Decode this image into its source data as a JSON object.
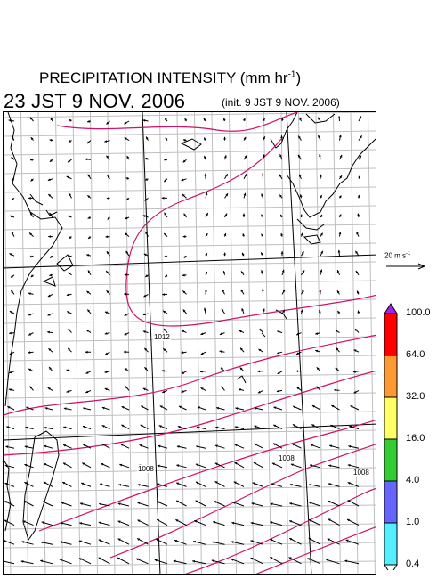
{
  "title_prefix": "PRECIPITATION INTENSITY (mm hr",
  "title_exp": "-1",
  "title_suffix": ")",
  "valid_time": "23 JST 9 NOV. 2006",
  "init_time": "(init. 9 JST 9 NOV. 2006)",
  "reference_vector": {
    "value_text": "20 m s",
    "exp": "-1"
  },
  "isobar_labels": [
    "1012",
    "1008",
    "1008",
    "1008"
  ],
  "color_scale": {
    "ticks": [
      "100.0",
      "64.0",
      "32.0",
      "16.0",
      "4.0",
      "1.0",
      "0.4"
    ],
    "colors": [
      "#a020f0",
      "#ff0000",
      "#ff9933",
      "#ffff66",
      "#33cc33",
      "#6666ff",
      "#55eeff",
      "#ffffff"
    ]
  },
  "colors": {
    "isobar": "#d0106a",
    "coast": "#000000",
    "grid": "#bfbfbf"
  }
}
